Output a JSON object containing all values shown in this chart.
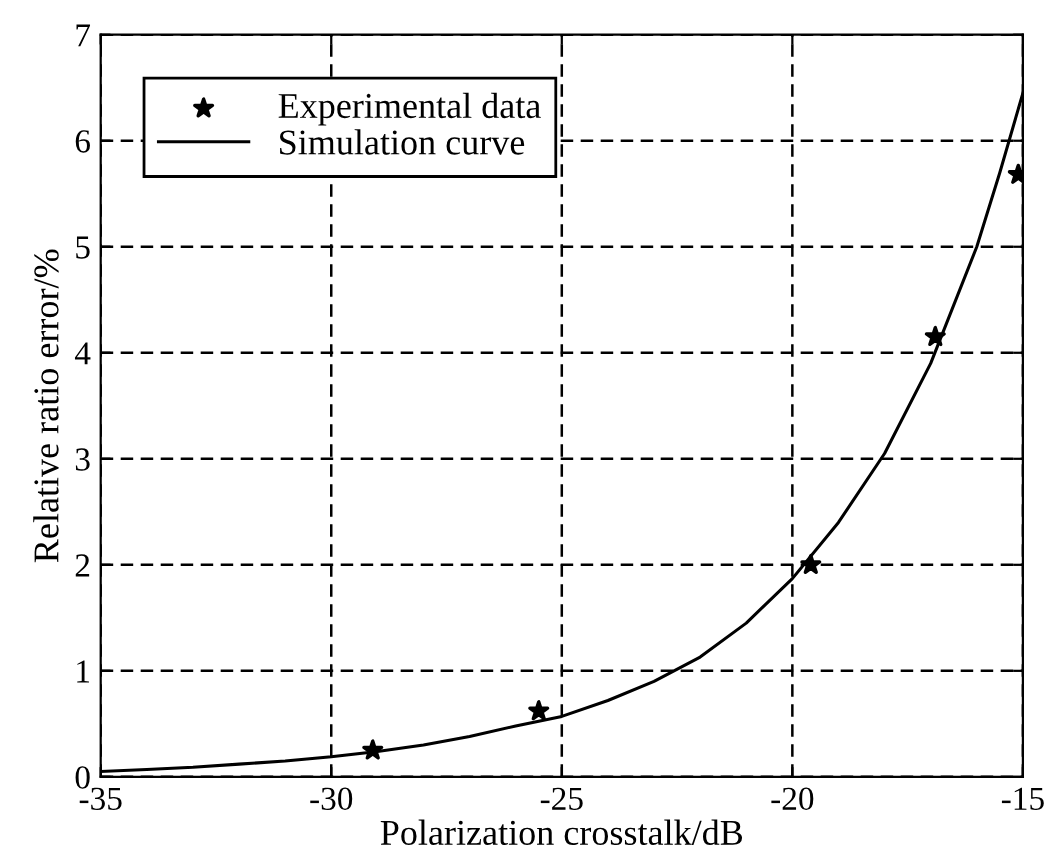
{
  "chart_data": {
    "type": "line",
    "xlabel": "Polarization crosstalk/dB",
    "ylabel": "Relative ratio error/%",
    "xlim": [
      -35,
      -15
    ],
    "xticks": [
      -35,
      -30,
      -25,
      -20,
      -15
    ],
    "ylim": [
      0,
      7
    ],
    "yticks": [
      0,
      1,
      2,
      3,
      4,
      5,
      6,
      7
    ],
    "grid": true,
    "legend": "top left",
    "series": [
      {
        "name": "Experimental data",
        "type": "scatter",
        "marker": "star",
        "color": "#000000",
        "x": [
          -29.1,
          -25.5,
          -19.6,
          -16.9,
          -15.1
        ],
        "values": [
          0.25,
          0.62,
          2.0,
          4.15,
          5.68
        ]
      },
      {
        "name": "Simulation curve",
        "marker": "none",
        "line_style": "solid",
        "color": "#000000",
        "x": [
          -35,
          -34,
          -33,
          -32,
          -31,
          -30,
          -29,
          -28,
          -27,
          -26,
          -25,
          -24,
          -23,
          -22,
          -21,
          -20,
          -19,
          -18,
          -17,
          -16,
          -15.5,
          -15
        ],
        "values": [
          0.05,
          0.07,
          0.09,
          0.12,
          0.15,
          0.19,
          0.24,
          0.3,
          0.38,
          0.48,
          0.57,
          0.72,
          0.9,
          1.13,
          1.45,
          1.87,
          2.4,
          3.05,
          3.9,
          5.0,
          5.7,
          6.45
        ]
      }
    ]
  }
}
